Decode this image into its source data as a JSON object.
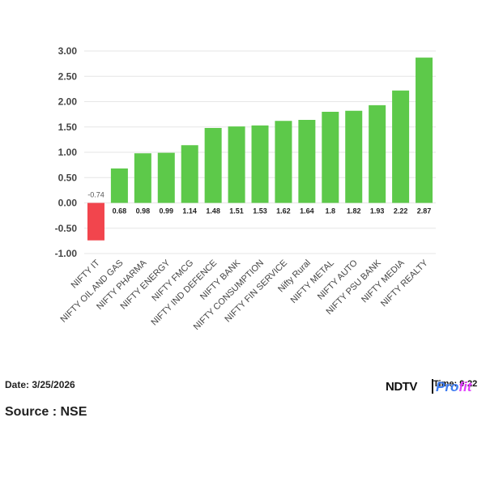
{
  "chart_data": {
    "type": "bar",
    "title": "",
    "xlabel": "",
    "ylabel": "",
    "ylim": [
      -1.0,
      3.0
    ],
    "yticks": [
      "3.00",
      "2.50",
      "2.00",
      "1.50",
      "1.00",
      "0.50",
      "0.00",
      "-0.50",
      "-1.00"
    ],
    "ytick_values": [
      3.0,
      2.5,
      2.0,
      1.5,
      1.0,
      0.5,
      0.0,
      -0.5,
      -1.0
    ],
    "grid": true,
    "colors": {
      "positive": "#5dc94a",
      "negative": "#f2454d"
    },
    "categories": [
      "NIFTY IT",
      "NIFTY OIL AND GAS",
      "NIFTY PHARMA",
      "NIFTY ENERGY",
      "NIFTY FMCG",
      "NIFTY IND DEFENCE",
      "NIFTY BANK",
      "NIFTY CONSUMPTION",
      "NIFTY FIN SERVICE",
      "Nifty Rural",
      "NIFTY METAL",
      "NIFTY AUTO",
      "NIFTY PSU BANK",
      "NIFTY MEDIA",
      "NIFTY REALTY"
    ],
    "values": [
      -0.74,
      0.68,
      0.98,
      0.99,
      1.14,
      1.48,
      1.51,
      1.53,
      1.62,
      1.64,
      1.8,
      1.82,
      1.93,
      2.22,
      2.87
    ],
    "data_labels": [
      "-0.74",
      "0.68",
      "0.98",
      "0.99",
      "1.14",
      "1.48",
      "1.51",
      "1.53",
      "1.62",
      "1.64",
      "1.8",
      "1.82",
      "1.93",
      "2.22",
      "2.87"
    ]
  },
  "footer": {
    "date": "Date: 3/25/2026",
    "source": "Source : NSE",
    "brand": "NDTV",
    "profit_a": "Pro",
    "profit_b": "fit",
    "time": "Time: 9:22"
  }
}
